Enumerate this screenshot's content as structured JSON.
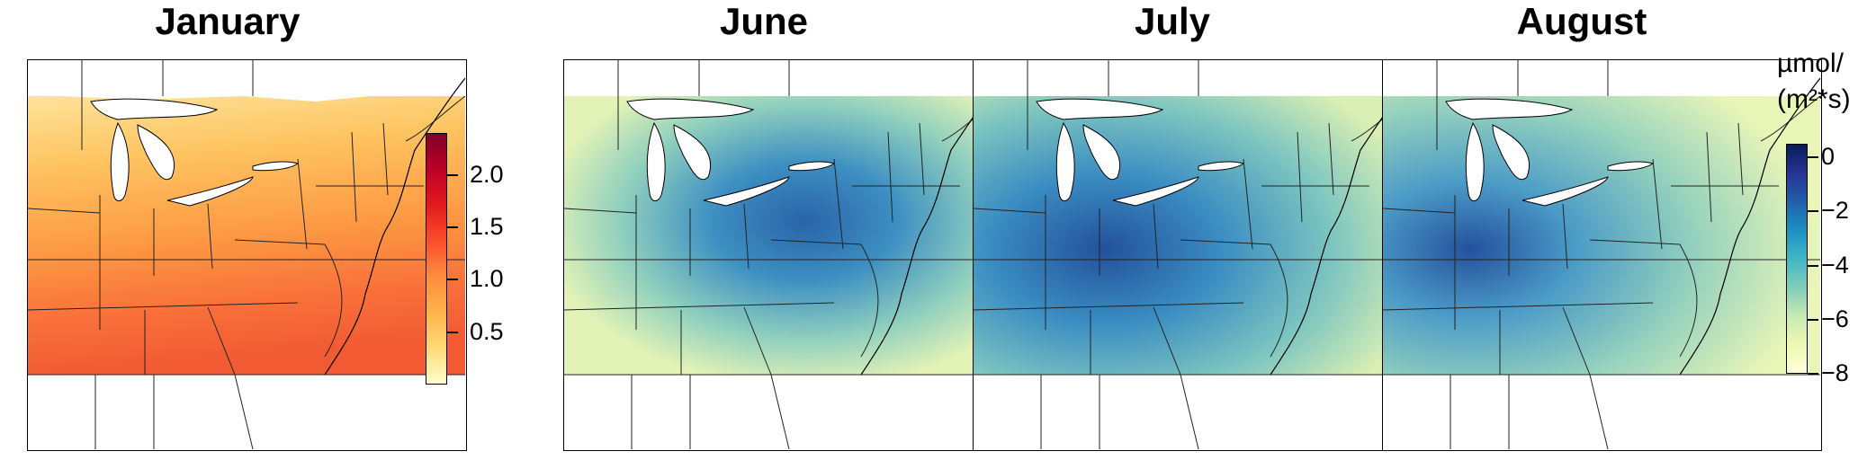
{
  "panels": [
    {
      "id": "jan",
      "title": "January",
      "palette": "warm"
    },
    {
      "id": "jun",
      "title": "June",
      "palette": "cool"
    },
    {
      "id": "jul",
      "title": "July",
      "palette": "cool"
    },
    {
      "id": "aug",
      "title": "August",
      "palette": "cool"
    }
  ],
  "legend_january": {
    "ticks": [
      "2.0",
      "1.5",
      "1.0",
      "0.5"
    ],
    "range": [
      0,
      2.4
    ],
    "colors": [
      "#ffffcc",
      "#fed976",
      "#feb24c",
      "#fd8d3c",
      "#fc4e2a",
      "#e31a1c",
      "#bd0026",
      "#800026"
    ]
  },
  "legend_summer": {
    "ticks": [
      "0",
      "−2",
      "−4",
      "−6",
      "−8"
    ],
    "range": [
      -8,
      0.5
    ],
    "unit_line1": "µmol/",
    "unit_line2": "(m²*s)",
    "colors": [
      "#ffffd9",
      "#edf8b1",
      "#c7e9b4",
      "#7fcdbb",
      "#41b6c4",
      "#1d91c0",
      "#225ea8",
      "#253494",
      "#081d58"
    ]
  }
}
